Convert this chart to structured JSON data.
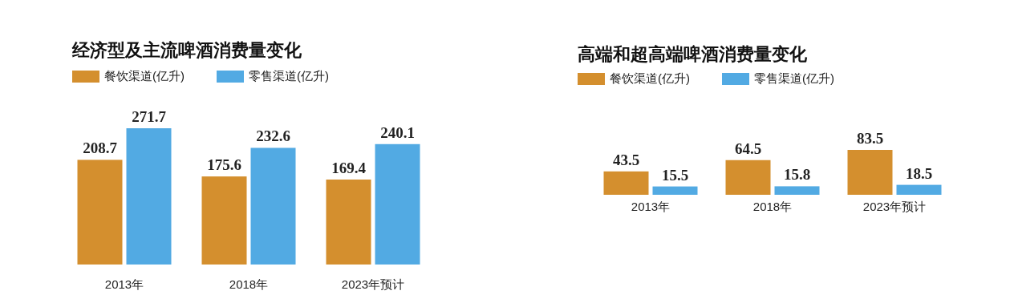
{
  "chart_data": [
    {
      "type": "bar",
      "title": "经济型及主流啤酒消费量变化",
      "categories": [
        "2013年",
        "2018年",
        "2023年预计"
      ],
      "series": [
        {
          "name": "餐饮渠道(亿升)",
          "color": "#d48f2e",
          "values": [
            208.7,
            175.6,
            169.4
          ]
        },
        {
          "name": "零售渠道(亿升)",
          "color": "#52aae3",
          "values": [
            271.7,
            232.6,
            240.1
          ]
        }
      ],
      "data_labels": true,
      "legend": "top left",
      "grid": false
    },
    {
      "type": "bar",
      "title": "高端和超高端啤酒消费量变化",
      "categories": [
        "2013年",
        "2018年",
        "2023年预计"
      ],
      "series": [
        {
          "name": "餐饮渠道(亿升)",
          "color": "#d48f2e",
          "values": [
            43.5,
            64.5,
            83.5
          ]
        },
        {
          "name": "零售渠道(亿升)",
          "color": "#52aae3",
          "values": [
            15.5,
            15.8,
            18.5
          ]
        }
      ],
      "data_labels": true,
      "legend": "top left",
      "grid": false
    }
  ]
}
